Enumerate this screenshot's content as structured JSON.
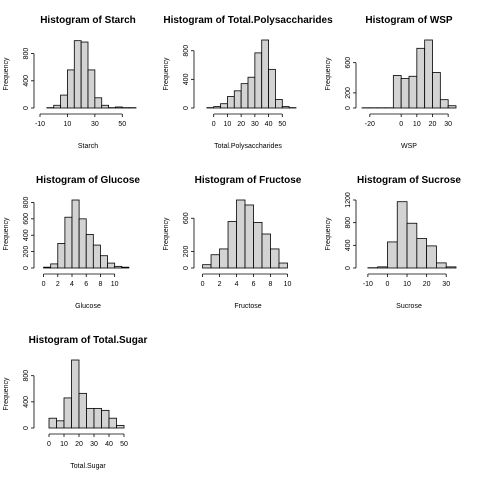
{
  "colors": {
    "bar_fill": "#d3d3d3",
    "bar_stroke": "#000000",
    "axis": "#000000",
    "background": "#ffffff"
  },
  "chart_data": [
    {
      "type": "bar",
      "title": "Histogram of Starch",
      "xlabel": "Starch",
      "ylabel": "Frequency",
      "bin_edges": [
        -5,
        0,
        5,
        10,
        15,
        20,
        25,
        30,
        35,
        40,
        45,
        50,
        55,
        60
      ],
      "values": [
        5,
        40,
        190,
        560,
        990,
        970,
        560,
        150,
        40,
        5,
        15,
        5,
        5
      ],
      "xlim": [
        -10,
        60
      ],
      "xticks": [
        -10,
        10,
        30,
        50
      ],
      "ylim": [
        0,
        1000
      ],
      "yticks": [
        0,
        400,
        800
      ]
    },
    {
      "type": "bar",
      "title": "Histogram of Total.Polysaccharides",
      "xlabel": "Total.Polysaccharides",
      "ylabel": "Frequency",
      "bin_edges": [
        -5,
        0,
        5,
        10,
        15,
        20,
        25,
        30,
        35,
        40,
        45,
        50,
        55,
        60
      ],
      "values": [
        5,
        20,
        60,
        160,
        240,
        340,
        430,
        770,
        950,
        540,
        120,
        20,
        5
      ],
      "xlim": [
        -10,
        60
      ],
      "xticks": [
        0,
        10,
        20,
        30,
        40,
        50
      ],
      "ylim": [
        0,
        950
      ],
      "yticks": [
        0,
        400,
        800
      ]
    },
    {
      "type": "bar",
      "title": "Histogram of WSP",
      "xlabel": "WSP",
      "ylabel": "Frequency",
      "bin_edges": [
        -25,
        -20,
        -15,
        -10,
        -5,
        0,
        5,
        10,
        15,
        20,
        25,
        30,
        35
      ],
      "values": [
        3,
        3,
        3,
        3,
        430,
        390,
        420,
        790,
        900,
        470,
        110,
        30
      ],
      "xlim": [
        -25,
        35
      ],
      "xticks": [
        -20,
        0,
        10,
        20,
        30
      ],
      "ylim": [
        0,
        900
      ],
      "yticks": [
        0,
        200,
        600
      ]
    },
    {
      "type": "bar",
      "title": "Histogram of Glucose",
      "xlabel": "Glucose",
      "ylabel": "Frequency",
      "bin_edges": [
        0,
        1,
        2,
        3,
        4,
        5,
        6,
        7,
        8,
        9,
        10,
        11,
        12
      ],
      "values": [
        10,
        50,
        300,
        620,
        830,
        600,
        410,
        280,
        150,
        60,
        20,
        10
      ],
      "xlim": [
        -0.5,
        13
      ],
      "xticks": [
        0,
        2,
        4,
        6,
        8,
        10
      ],
      "ylim": [
        0,
        830
      ],
      "yticks": [
        0,
        200,
        400,
        600,
        800
      ]
    },
    {
      "type": "bar",
      "title": "Histogram of Fructose",
      "xlabel": "Fructose",
      "ylabel": "Frequency",
      "bin_edges": [
        0,
        1,
        2,
        3,
        4,
        5,
        6,
        7,
        8,
        9,
        10
      ],
      "values": [
        40,
        160,
        230,
        560,
        820,
        760,
        550,
        410,
        230,
        60
      ],
      "xlim": [
        -0.3,
        11
      ],
      "xticks": [
        0,
        2,
        4,
        6,
        8,
        10
      ],
      "ylim": [
        0,
        820
      ],
      "yticks": [
        0,
        200,
        600
      ]
    },
    {
      "type": "bar",
      "title": "Histogram of Sucrose",
      "xlabel": "Sucrose",
      "ylabel": "Frequency",
      "bin_edges": [
        -10,
        -5,
        0,
        5,
        10,
        15,
        20,
        25,
        30,
        35
      ],
      "values": [
        5,
        20,
        460,
        1170,
        790,
        520,
        390,
        90,
        20
      ],
      "xlim": [
        -13,
        35
      ],
      "xticks": [
        -10,
        0,
        10,
        20,
        30
      ],
      "ylim": [
        0,
        1200
      ],
      "yticks": [
        0,
        400,
        800,
        1200
      ]
    },
    {
      "type": "bar",
      "title": "Histogram of Total.Sugar",
      "xlabel": "Total.Sugar",
      "ylabel": "Frequency",
      "bin_edges": [
        0,
        5,
        10,
        15,
        20,
        25,
        30,
        35,
        40,
        45,
        50
      ],
      "values": [
        150,
        110,
        460,
        1040,
        530,
        300,
        300,
        270,
        150,
        40
      ],
      "xlim": [
        -6,
        58
      ],
      "xticks": [
        0,
        10,
        20,
        30,
        40,
        50
      ],
      "ylim": [
        0,
        1040
      ],
      "yticks": [
        0,
        400,
        800
      ]
    }
  ]
}
